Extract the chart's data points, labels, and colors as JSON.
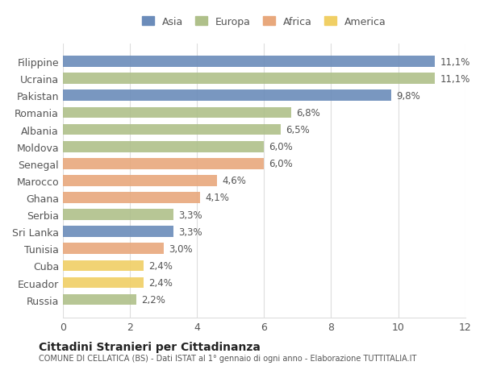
{
  "categories": [
    "Filippine",
    "Ucraina",
    "Pakistan",
    "Romania",
    "Albania",
    "Moldova",
    "Senegal",
    "Marocco",
    "Ghana",
    "Serbia",
    "Sri Lanka",
    "Tunisia",
    "Cuba",
    "Ecuador",
    "Russia"
  ],
  "values": [
    11.1,
    11.1,
    9.8,
    6.8,
    6.5,
    6.0,
    6.0,
    4.6,
    4.1,
    3.3,
    3.3,
    3.0,
    2.4,
    2.4,
    2.2
  ],
  "labels": [
    "11,1%",
    "11,1%",
    "9,8%",
    "6,8%",
    "6,5%",
    "6,0%",
    "6,0%",
    "4,6%",
    "4,1%",
    "3,3%",
    "3,3%",
    "3,0%",
    "2,4%",
    "2,4%",
    "2,2%"
  ],
  "continents": [
    "Asia",
    "Europa",
    "Asia",
    "Europa",
    "Europa",
    "Europa",
    "Africa",
    "Africa",
    "Africa",
    "Europa",
    "Asia",
    "Africa",
    "America",
    "America",
    "Europa"
  ],
  "colors": {
    "Asia": "#6b8cba",
    "Europa": "#afc08a",
    "Africa": "#e8a87c",
    "America": "#f0cf65"
  },
  "legend_order": [
    "Asia",
    "Europa",
    "Africa",
    "America"
  ],
  "title": "Cittadini Stranieri per Cittadinanza",
  "subtitle": "COMUNE DI CELLATICA (BS) - Dati ISTAT al 1° gennaio di ogni anno - Elaborazione TUTTITALIA.IT",
  "xlim": [
    0,
    12
  ],
  "xticks": [
    0,
    2,
    4,
    6,
    8,
    10,
    12
  ],
  "background_color": "#ffffff",
  "grid_color": "#dddddd"
}
